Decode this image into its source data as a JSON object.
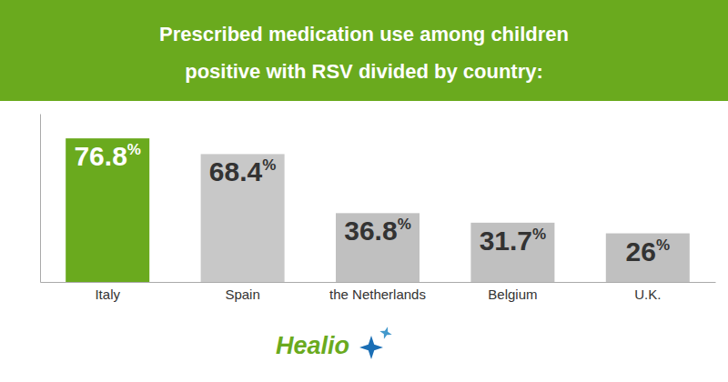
{
  "chart_data": {
    "type": "bar",
    "title": "Prescribed medication use among children",
    "subtitle": "positive with RSV divided by country:",
    "categories": [
      "Italy",
      "Spain",
      "the Netherlands",
      "Belgium",
      "U.K."
    ],
    "values": [
      76.8,
      68.4,
      36.8,
      31.7,
      26.0
    ],
    "value_labels": [
      "76.8%",
      "68.4%",
      "36.8%",
      "31.7%",
      "26%"
    ],
    "data_labels": true,
    "colors": [
      "#6aaa1e",
      "#c8c8c8",
      "#c0c0c0",
      "#c0c0c0",
      "#c0c0c0"
    ],
    "ylim": [
      0,
      90
    ],
    "yticks": [],
    "tick_labels": "x",
    "grid": false,
    "annotations": [
      "Healio"
    ]
  }
}
